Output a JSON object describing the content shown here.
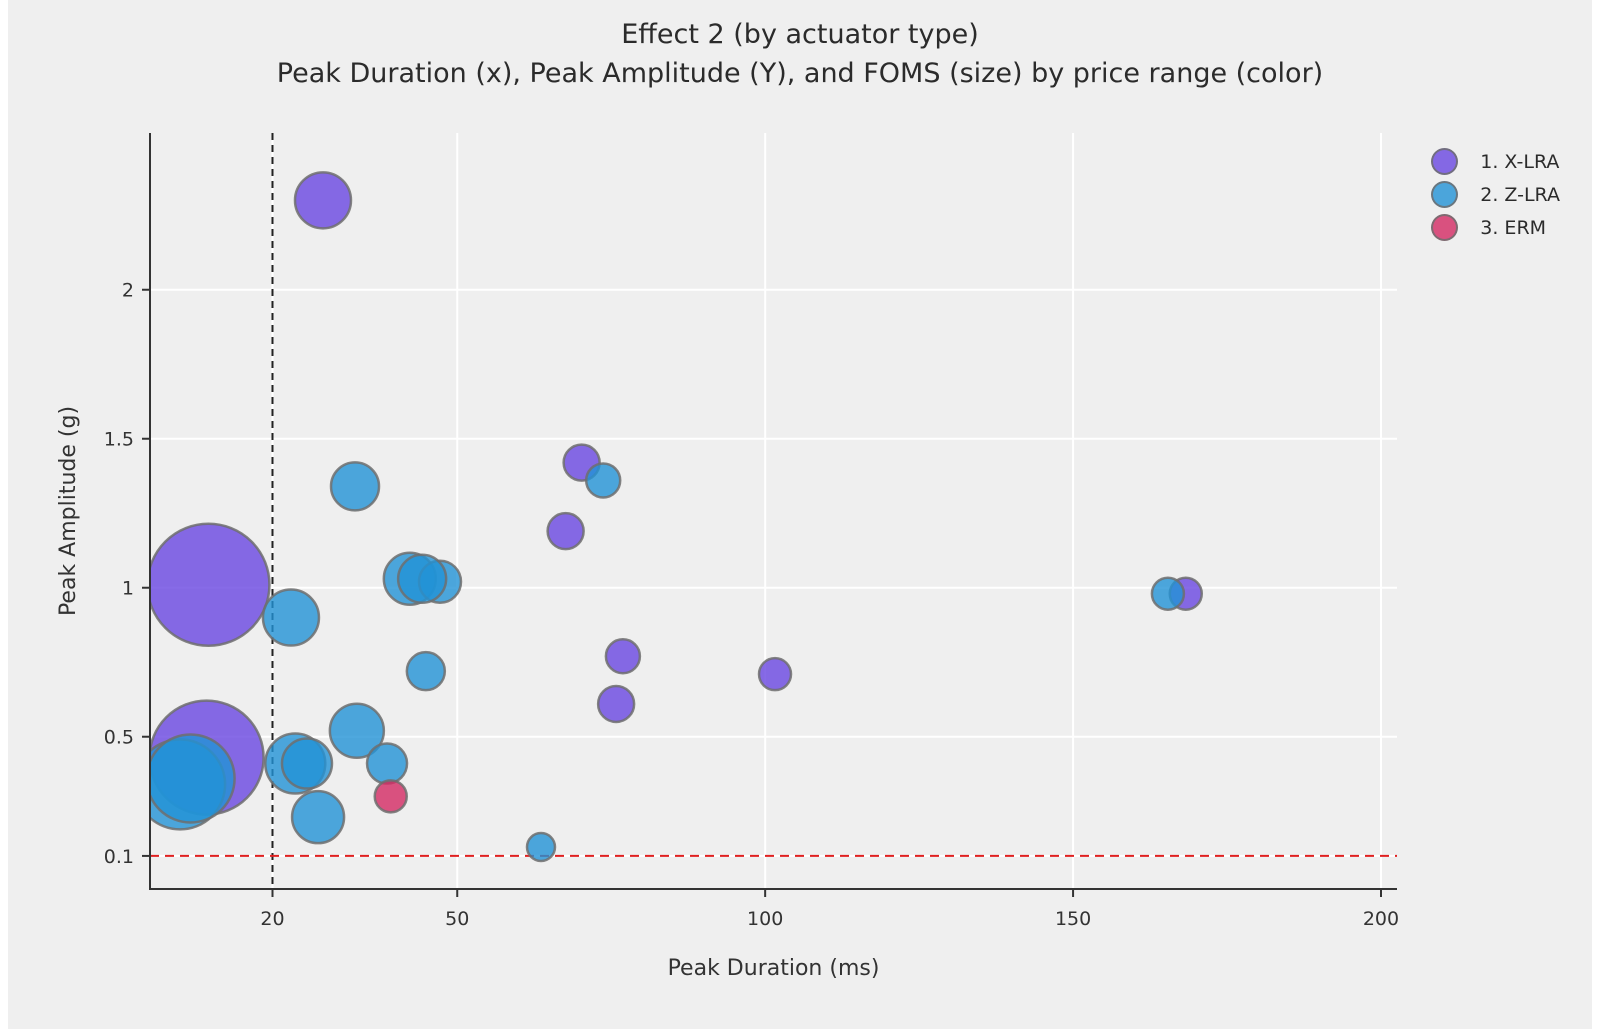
{
  "title": {
    "line1": "Effect 2 (by actuator type)",
    "line2": "Peak Duration (x), Peak Amplitude (Y), and FOMS (size) by price range (color)"
  },
  "legend": {
    "items": [
      {
        "label": "1. X-LRA",
        "color_key": "x_lra"
      },
      {
        "label": "2. Z-LRA",
        "color_key": "z_lra"
      },
      {
        "label": "3. ERM",
        "color_key": "erm"
      }
    ]
  },
  "chart_data": {
    "type": "scatter",
    "subtype": "bubble",
    "title": "Effect 2 (by actuator type)",
    "xlabel": "Peak Duration (ms)",
    "ylabel": "Peak Amplitude (g)",
    "x_axis": {
      "range": [
        0.11,
        202.6
      ],
      "ticks": [
        {
          "v": 20,
          "label": "20"
        },
        {
          "v": 50,
          "label": "50"
        },
        {
          "v": 100,
          "label": "100"
        },
        {
          "v": 150,
          "label": "150"
        },
        {
          "v": 200,
          "label": "200"
        }
      ]
    },
    "y_axis": {
      "range": [
        -0.011,
        2.526
      ],
      "ticks": [
        {
          "v": 0.1,
          "label": "0.1"
        },
        {
          "v": 0.5,
          "label": "0.5"
        },
        {
          "v": 1,
          "label": "1"
        },
        {
          "v": 1.5,
          "label": "1.5"
        },
        {
          "v": 2,
          "label": "2"
        }
      ]
    },
    "grid": true,
    "legend_position": "top-right",
    "ref_lines": [
      {
        "orientation": "vertical",
        "value": 20,
        "style": "dashed",
        "color_key": "ref_black"
      },
      {
        "orientation": "horizontal",
        "value": 0.1,
        "style": "dashed",
        "color_key": "ref_red"
      }
    ],
    "size_encoding": "FOMS (bubble radius in px, larger = higher FOMS)",
    "series": [
      {
        "name": "1. X-LRA",
        "color_key": "x_lra",
        "points": [
          {
            "x": 28.2,
            "y": 2.3,
            "r": 28
          },
          {
            "x": 9.6,
            "y": 1.01,
            "r": 61
          },
          {
            "x": 9.3,
            "y": 0.43,
            "r": 57
          },
          {
            "x": 70.2,
            "y": 1.42,
            "r": 18
          },
          {
            "x": 67.6,
            "y": 1.19,
            "r": 18
          },
          {
            "x": 76.9,
            "y": 0.77,
            "r": 17
          },
          {
            "x": 75.8,
            "y": 0.61,
            "r": 18
          },
          {
            "x": 101.6,
            "y": 0.71,
            "r": 16
          },
          {
            "x": 168.3,
            "y": 0.98,
            "r": 16
          }
        ]
      },
      {
        "name": "2. Z-LRA",
        "color_key": "z_lra",
        "points": [
          {
            "x": 5.0,
            "y": 0.34,
            "r": 45
          },
          {
            "x": 6.7,
            "y": 0.36,
            "r": 44
          },
          {
            "x": 33.4,
            "y": 1.34,
            "r": 24
          },
          {
            "x": 23.0,
            "y": 0.9,
            "r": 28
          },
          {
            "x": 42.3,
            "y": 1.03,
            "r": 26
          },
          {
            "x": 47.2,
            "y": 1.02,
            "r": 21
          },
          {
            "x": 44.3,
            "y": 1.03,
            "r": 24
          },
          {
            "x": 73.7,
            "y": 1.36,
            "r": 17
          },
          {
            "x": 44.9,
            "y": 0.72,
            "r": 19
          },
          {
            "x": 23.7,
            "y": 0.41,
            "r": 30
          },
          {
            "x": 25.6,
            "y": 0.41,
            "r": 25
          },
          {
            "x": 33.7,
            "y": 0.52,
            "r": 27
          },
          {
            "x": 38.6,
            "y": 0.41,
            "r": 20
          },
          {
            "x": 27.4,
            "y": 0.23,
            "r": 26
          },
          {
            "x": 63.6,
            "y": 0.13,
            "r": 14
          },
          {
            "x": 165.4,
            "y": 0.98,
            "r": 16
          }
        ]
      },
      {
        "name": "3. ERM",
        "color_key": "erm",
        "points": [
          {
            "x": 39.2,
            "y": 0.3,
            "r": 16
          }
        ]
      }
    ],
    "colors": {
      "x_lra": "rgba(105,70,225,0.8)",
      "z_lra": "rgba(34,146,214,0.8)",
      "erm": "rgba(211,41,99,0.8)",
      "stroke": "rgba(110,110,110,0.85)",
      "grid": "#ffffff",
      "axis": "#333333",
      "ref_black": "#222222",
      "ref_red": "#e02020"
    }
  }
}
